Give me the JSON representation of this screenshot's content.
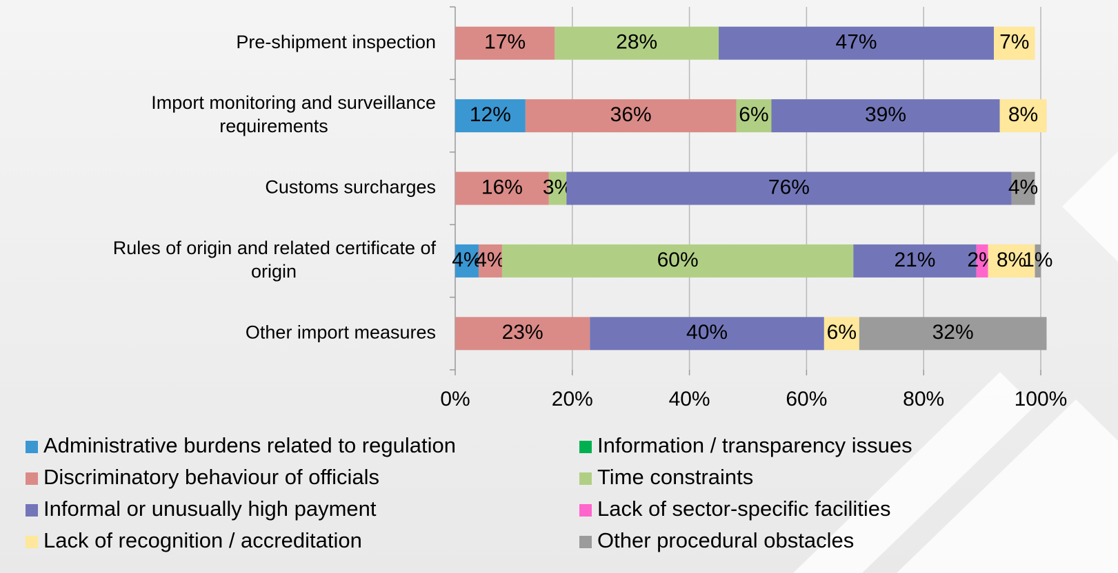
{
  "chart_data": {
    "type": "stacked-bar-horizontal",
    "categories": [
      "Pre-shipment inspection",
      "Import monitoring and surveillance requirements",
      "Customs surcharges",
      "Rules of origin and related certificate of origin",
      "Other import measures"
    ],
    "series": [
      {
        "name": "Administrative burdens related to regulation",
        "color": "#3a97d2",
        "values": [
          0,
          12,
          0,
          4,
          0
        ],
        "value_labels": [
          null,
          "12%",
          null,
          "4%",
          null
        ]
      },
      {
        "name": "Information / transparency issues",
        "color": "#00b050",
        "values": [
          0,
          0,
          0,
          0,
          0
        ],
        "value_labels": [
          null,
          null,
          null,
          null,
          null
        ]
      },
      {
        "name": "Discriminatory behaviour of officials",
        "color": "#da8b87",
        "values": [
          17,
          36,
          16,
          4,
          23
        ],
        "value_labels": [
          "17%",
          "36%",
          "16%",
          "4%",
          "23%"
        ]
      },
      {
        "name": "Time constraints",
        "color": "#b1cf84",
        "values": [
          28,
          6,
          3,
          60,
          0
        ],
        "value_labels": [
          "28%",
          "6%",
          "3%",
          "60%",
          null
        ]
      },
      {
        "name": "Informal or unusually high payment",
        "color": "#7276b8",
        "values": [
          47,
          39,
          76,
          21,
          40
        ],
        "value_labels": [
          "47%",
          "39%",
          "76%",
          "21%",
          "40%"
        ]
      },
      {
        "name": "Lack of sector-specific facilities",
        "color": "#ff66cc",
        "values": [
          0,
          0,
          0,
          2,
          0
        ],
        "value_labels": [
          null,
          null,
          null,
          "2%",
          null
        ]
      },
      {
        "name": "Lack of recognition / accreditation",
        "color": "#ffe79c",
        "values": [
          7,
          8,
          0,
          8,
          6
        ],
        "value_labels": [
          "7%",
          "8%",
          null,
          "8%",
          "6%"
        ]
      },
      {
        "name": "Other procedural obstacles",
        "color": "#9b9b9b",
        "values": [
          0,
          0,
          4,
          1,
          32
        ],
        "value_labels": [
          null,
          null,
          "4%",
          "1%",
          "32%"
        ]
      }
    ],
    "xlim": [
      0,
      100
    ],
    "xticks": [
      {
        "value": 0,
        "label": "0%"
      },
      {
        "value": 20,
        "label": "20%"
      },
      {
        "value": 40,
        "label": "40%"
      },
      {
        "value": 60,
        "label": "60%"
      },
      {
        "value": 80,
        "label": "80%"
      },
      {
        "value": 100,
        "label": "100%"
      }
    ],
    "grid": true
  }
}
